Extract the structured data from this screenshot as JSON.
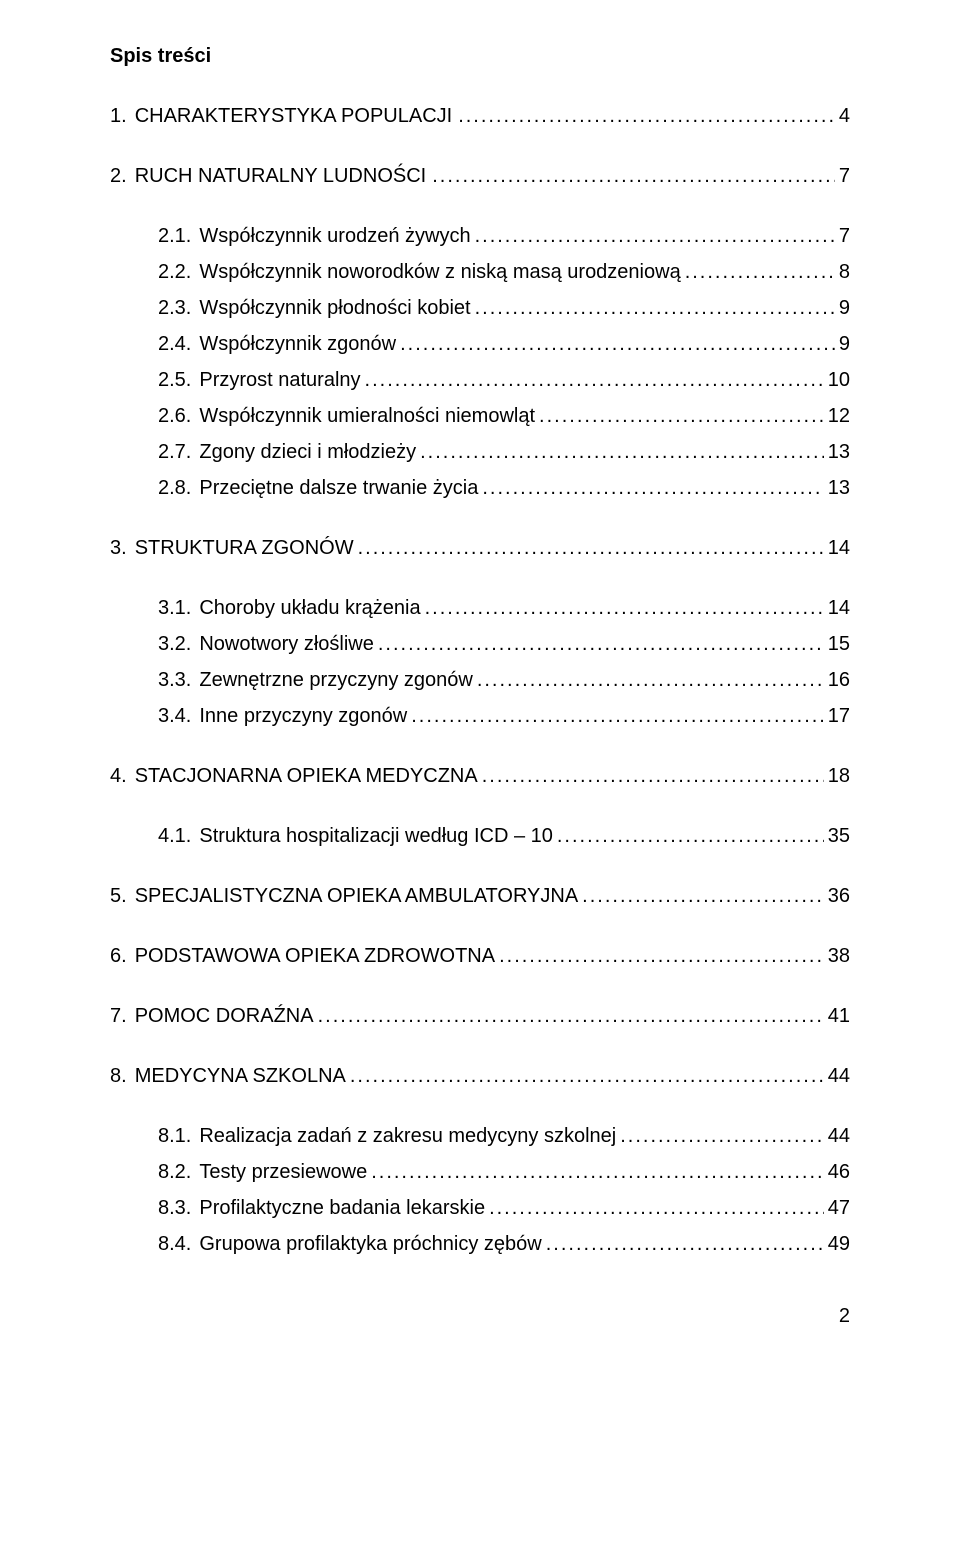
{
  "title": "Spis treści",
  "page_number": "2",
  "entries": [
    {
      "num": "1.",
      "text": "CHARAKTERYSTYKA POPULACJI",
      "page": "4",
      "indent": false,
      "leader_space": true
    },
    {
      "gap": true
    },
    {
      "num": "2.",
      "text": "RUCH NATURALNY LUDNOŚCI",
      "page": "7",
      "indent": false,
      "leader_space": true
    },
    {
      "gap": true
    },
    {
      "num": "2.1.",
      "text": "Współczynnik urodzeń żywych",
      "page": "7",
      "indent": true,
      "leader_space": false
    },
    {
      "num": "2.2.",
      "text": "Współczynnik noworodków z niską masą urodzeniową",
      "page": "8",
      "indent": true,
      "leader_space": false
    },
    {
      "num": "2.3.",
      "text": "Współczynnik płodności kobiet",
      "page": "9",
      "indent": true,
      "leader_space": false
    },
    {
      "num": "2.4.",
      "text": "Współczynnik zgonów",
      "page": "9",
      "indent": true,
      "leader_space": false
    },
    {
      "num": "2.5.",
      "text": "Przyrost naturalny",
      "page": "10",
      "indent": true,
      "leader_space": false
    },
    {
      "num": "2.6.",
      "text": "Współczynnik umieralności niemowląt",
      "page": "12",
      "indent": true,
      "leader_space": false
    },
    {
      "num": "2.7.",
      "text": "Zgony dzieci i młodzieży",
      "page": "13",
      "indent": true,
      "leader_space": false
    },
    {
      "num": "2.8.",
      "text": "Przeciętne dalsze trwanie życia",
      "page": "13",
      "indent": true,
      "leader_space": false
    },
    {
      "gap": true
    },
    {
      "num": "3.",
      "text": "STRUKTURA ZGONÓW",
      "page": "14",
      "indent": false,
      "leader_space": false
    },
    {
      "gap": true
    },
    {
      "num": "3.1.",
      "text": "Choroby układu krążenia",
      "page": "14",
      "indent": true,
      "leader_space": false
    },
    {
      "num": "3.2.",
      "text": "Nowotwory złośliwe",
      "page": "15",
      "indent": true,
      "leader_space": false
    },
    {
      "num": "3.3.",
      "text": "Zewnętrzne przyczyny zgonów",
      "page": "16",
      "indent": true,
      "leader_space": false
    },
    {
      "num": "3.4.",
      "text": "Inne przyczyny zgonów",
      "page": "17",
      "indent": true,
      "leader_space": false
    },
    {
      "gap": true
    },
    {
      "num": "4.",
      "text": "STACJONARNA OPIEKA MEDYCZNA",
      "page": "18",
      "indent": false,
      "leader_space": false
    },
    {
      "gap": true
    },
    {
      "num": "4.1.",
      "text": "Struktura hospitalizacji według ICD – 10",
      "page": "35",
      "indent": true,
      "leader_space": false
    },
    {
      "gap": true
    },
    {
      "num": "5.",
      "text": "SPECJALISTYCZNA OPIEKA AMBULATORYJNA",
      "page": "36",
      "indent": false,
      "leader_space": false
    },
    {
      "gap": true
    },
    {
      "num": "6.",
      "text": "PODSTAWOWA OPIEKA ZDROWOTNA",
      "page": "38",
      "indent": false,
      "leader_space": false
    },
    {
      "gap": true
    },
    {
      "num": "7.",
      "text": "POMOC DORAŹNA",
      "page": "41",
      "indent": false,
      "leader_space": false
    },
    {
      "gap": true
    },
    {
      "num": "8.",
      "text": "MEDYCYNA SZKOLNA",
      "page": "44",
      "indent": false,
      "leader_space": false
    },
    {
      "gap": true
    },
    {
      "num": "8.1.",
      "text": "Realizacja zadań z zakresu medycyny szkolnej",
      "page": "44",
      "indent": true,
      "leader_space": false
    },
    {
      "num": "8.2.",
      "text": "Testy przesiewowe",
      "page": "46",
      "indent": true,
      "leader_space": false
    },
    {
      "num": "8.3.",
      "text": "Profilaktyczne badania lekarskie",
      "page": "47",
      "indent": true,
      "leader_space": false
    },
    {
      "num": "8.4.",
      "text": "Grupowa profilaktyka próchnicy zębów",
      "page": "49",
      "indent": true,
      "leader_space": false
    }
  ]
}
